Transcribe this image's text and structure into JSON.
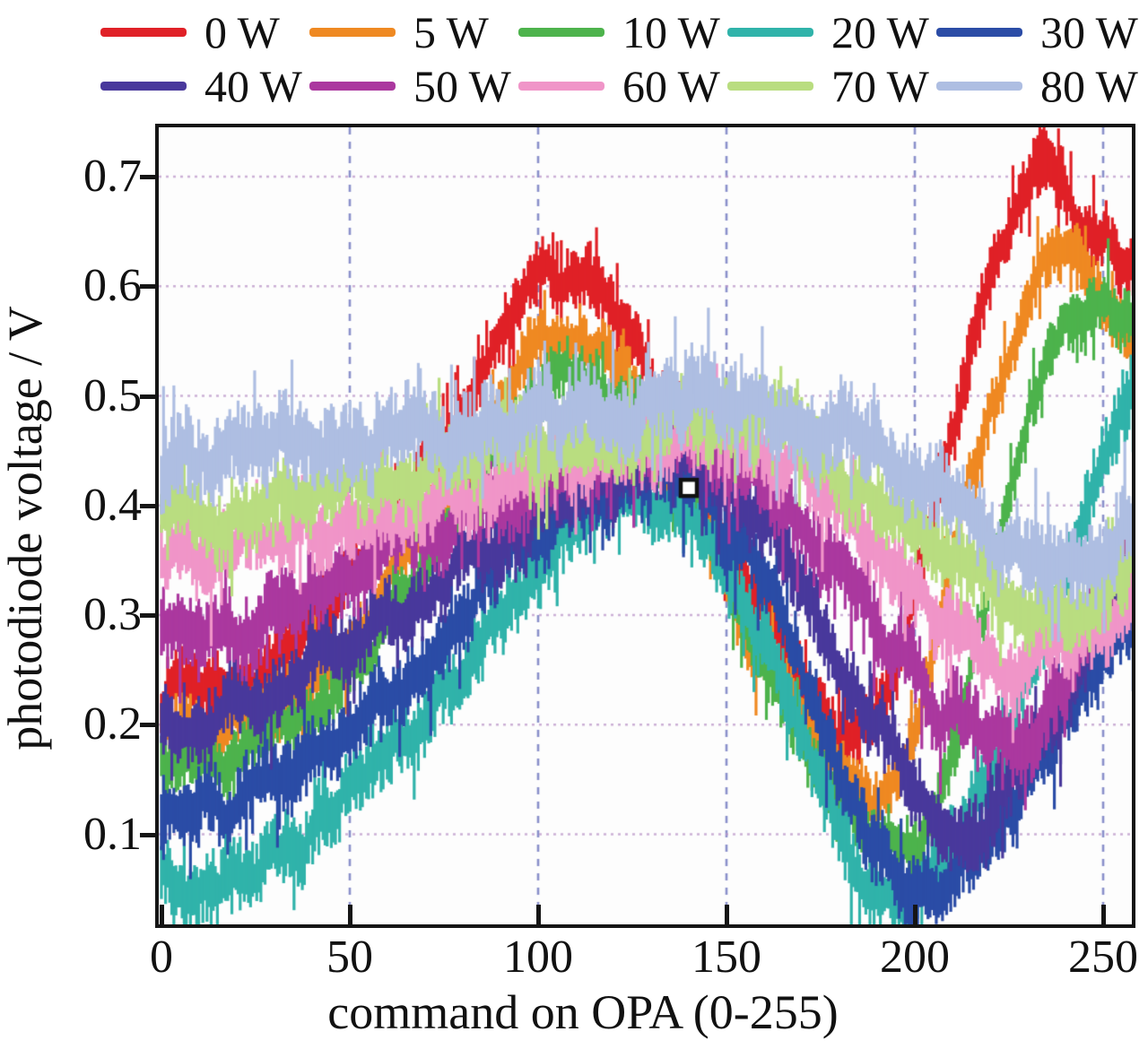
{
  "legend": {
    "rows": [
      [
        {
          "label": "0 W",
          "color": "#e02127"
        },
        {
          "label": "5 W",
          "color": "#ef8922"
        },
        {
          "label": "10 W",
          "color": "#4db34c"
        },
        {
          "label": "20 W",
          "color": "#30b3aa"
        },
        {
          "label": "30 W",
          "color": "#2b4ca6"
        }
      ],
      [
        {
          "label": "40 W",
          "color": "#49399c"
        },
        {
          "label": "50 W",
          "color": "#ab389f"
        },
        {
          "label": "60 W",
          "color": "#f095c8"
        },
        {
          "label": "70 W",
          "color": "#b9dd80"
        },
        {
          "label": "80 W",
          "color": "#aebee2"
        }
      ]
    ]
  },
  "y_axis": {
    "label": "photodiode voltage / V",
    "ticks": [
      0.7,
      0.6,
      0.5,
      0.4,
      0.3,
      0.2,
      0.1
    ]
  },
  "x_axis": {
    "label": "command on OPA (0-255)",
    "ticks": [
      0,
      50,
      100,
      150,
      200,
      250
    ]
  },
  "chart_data": {
    "type": "line",
    "title": "",
    "xlabel": "command on OPA (0-255)",
    "ylabel": "photodiode voltage / V",
    "xlim": [
      0,
      258
    ],
    "ylim": [
      0.018,
      0.745
    ],
    "grid": {
      "vertical_x": [
        50,
        100,
        150,
        200,
        250
      ],
      "horizontal_y": [
        0.1,
        0.2,
        0.3,
        0.4,
        0.5,
        0.6,
        0.7
      ],
      "vertical_color": "#646cb9",
      "horizontal_color": "#bb96c8"
    },
    "legend_position": "top",
    "noise_band_note": "each series is a noisy band; anchors give the band center line [command, volts], band = half-thickness in volts",
    "series": [
      {
        "name": "0 W",
        "color": "#e02127",
        "band": 0.024,
        "anchors": [
          [
            0,
            0.235
          ],
          [
            20,
            0.245
          ],
          [
            50,
            0.33
          ],
          [
            80,
            0.48
          ],
          [
            105,
            0.615
          ],
          [
            130,
            0.52
          ],
          [
            160,
            0.31
          ],
          [
            180,
            0.185
          ],
          [
            195,
            0.25
          ],
          [
            210,
            0.47
          ],
          [
            225,
            0.655
          ],
          [
            233,
            0.7
          ],
          [
            245,
            0.66
          ],
          [
            258,
            0.615
          ]
        ]
      },
      {
        "name": "5 W",
        "color": "#ef8922",
        "band": 0.022,
        "anchors": [
          [
            0,
            0.19
          ],
          [
            20,
            0.2
          ],
          [
            50,
            0.28
          ],
          [
            80,
            0.43
          ],
          [
            105,
            0.555
          ],
          [
            130,
            0.47
          ],
          [
            160,
            0.26
          ],
          [
            188,
            0.135
          ],
          [
            200,
            0.2
          ],
          [
            215,
            0.42
          ],
          [
            230,
            0.58
          ],
          [
            239,
            0.635
          ],
          [
            250,
            0.585
          ],
          [
            258,
            0.555
          ]
        ]
      },
      {
        "name": "10 W",
        "color": "#4db34c",
        "band": 0.022,
        "anchors": [
          [
            0,
            0.165
          ],
          [
            20,
            0.175
          ],
          [
            50,
            0.25
          ],
          [
            80,
            0.4
          ],
          [
            108,
            0.52
          ],
          [
            135,
            0.44
          ],
          [
            165,
            0.22
          ],
          [
            195,
            0.085
          ],
          [
            207,
            0.13
          ],
          [
            220,
            0.33
          ],
          [
            235,
            0.52
          ],
          [
            246,
            0.585
          ],
          [
            258,
            0.56
          ]
        ]
      },
      {
        "name": "20 W",
        "color": "#30b3aa",
        "band": 0.026,
        "anchors": [
          [
            0,
            0.06
          ],
          [
            25,
            0.075
          ],
          [
            60,
            0.17
          ],
          [
            90,
            0.3
          ],
          [
            125,
            0.405
          ],
          [
            150,
            0.35
          ],
          [
            170,
            0.18
          ],
          [
            192,
            0.04
          ],
          [
            205,
            0.07
          ],
          [
            220,
            0.17
          ],
          [
            240,
            0.33
          ],
          [
            258,
            0.49
          ]
        ]
      },
      {
        "name": "30 W",
        "color": "#2b4ca6",
        "band": 0.026,
        "anchors": [
          [
            0,
            0.12
          ],
          [
            25,
            0.135
          ],
          [
            60,
            0.22
          ],
          [
            95,
            0.36
          ],
          [
            135,
            0.425
          ],
          [
            160,
            0.33
          ],
          [
            180,
            0.15
          ],
          [
            203,
            0.05
          ],
          [
            215,
            0.08
          ],
          [
            232,
            0.16
          ],
          [
            248,
            0.25
          ],
          [
            258,
            0.305
          ]
        ]
      },
      {
        "name": "40 W",
        "color": "#49399c",
        "band": 0.026,
        "anchors": [
          [
            0,
            0.2
          ],
          [
            30,
            0.235
          ],
          [
            70,
            0.325
          ],
          [
            110,
            0.415
          ],
          [
            142,
            0.44
          ],
          [
            170,
            0.33
          ],
          [
            192,
            0.19
          ],
          [
            210,
            0.105
          ],
          [
            225,
            0.14
          ],
          [
            240,
            0.23
          ],
          [
            258,
            0.345
          ]
        ]
      },
      {
        "name": "50 W",
        "color": "#ab389f",
        "band": 0.028,
        "anchors": [
          [
            0,
            0.285
          ],
          [
            30,
            0.31
          ],
          [
            70,
            0.375
          ],
          [
            115,
            0.44
          ],
          [
            148,
            0.452
          ],
          [
            175,
            0.36
          ],
          [
            200,
            0.245
          ],
          [
            220,
            0.18
          ],
          [
            235,
            0.215
          ],
          [
            248,
            0.3
          ],
          [
            258,
            0.365
          ]
        ]
      },
      {
        "name": "60 W",
        "color": "#f095c8",
        "band": 0.027,
        "anchors": [
          [
            0,
            0.35
          ],
          [
            35,
            0.37
          ],
          [
            80,
            0.41
          ],
          [
            120,
            0.45
          ],
          [
            155,
            0.462
          ],
          [
            180,
            0.4
          ],
          [
            205,
            0.31
          ],
          [
            228,
            0.255
          ],
          [
            242,
            0.27
          ],
          [
            258,
            0.305
          ]
        ]
      },
      {
        "name": "70 W",
        "color": "#b9dd80",
        "band": 0.028,
        "anchors": [
          [
            0,
            0.39
          ],
          [
            35,
            0.41
          ],
          [
            75,
            0.44
          ],
          [
            120,
            0.468
          ],
          [
            158,
            0.478
          ],
          [
            185,
            0.425
          ],
          [
            212,
            0.35
          ],
          [
            235,
            0.3
          ],
          [
            248,
            0.315
          ],
          [
            258,
            0.365
          ]
        ]
      },
      {
        "name": "80 W",
        "color": "#aebee2",
        "band": 0.031,
        "anchors": [
          [
            0,
            0.448
          ],
          [
            35,
            0.455
          ],
          [
            75,
            0.47
          ],
          [
            115,
            0.49
          ],
          [
            155,
            0.49
          ],
          [
            185,
            0.455
          ],
          [
            210,
            0.405
          ],
          [
            238,
            0.35
          ],
          [
            250,
            0.363
          ],
          [
            258,
            0.385
          ]
        ]
      }
    ],
    "marker": {
      "x": 140,
      "y": 0.416,
      "symbol": "open-square",
      "color": "#111111"
    }
  }
}
